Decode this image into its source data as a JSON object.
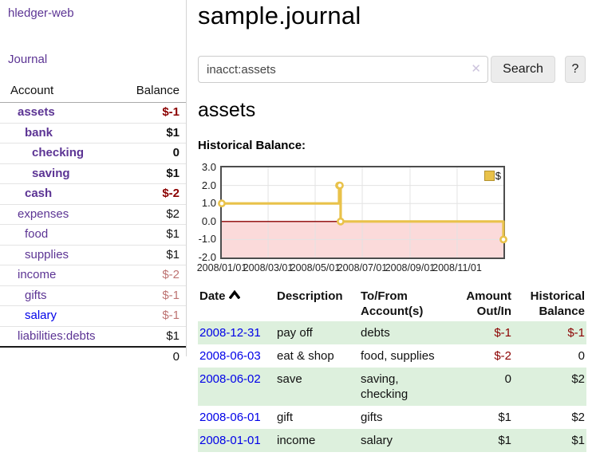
{
  "brand": "hledger-web",
  "nav": {
    "journal": "Journal"
  },
  "colors": {
    "accent_purple": "#5c3494",
    "link_blue": "#0000e8",
    "negative_strong": "#8b0000",
    "negative_muted": "#bd7372",
    "row_stripe_green": "#ddf0dd",
    "chart_line_gold": "#e9c24a",
    "chart_zero_line": "#8b0000",
    "chart_negative_region": "#fbdada"
  },
  "sidebar_table": {
    "headers": {
      "account": "Account",
      "balance": "Balance"
    },
    "rows": [
      {
        "name": "assets",
        "depth": 0,
        "bold": true,
        "balance": "$-1",
        "neg": "strong"
      },
      {
        "name": "bank",
        "depth": 1,
        "bold": true,
        "balance": "$1",
        "neg": "none"
      },
      {
        "name": "checking",
        "depth": 2,
        "bold": true,
        "balance": "0",
        "neg": "none"
      },
      {
        "name": "saving",
        "depth": 2,
        "bold": true,
        "balance": "$1",
        "neg": "none"
      },
      {
        "name": "cash",
        "depth": 1,
        "bold": true,
        "balance": "$-2",
        "neg": "strong"
      },
      {
        "name": "expenses",
        "depth": 0,
        "bold": false,
        "balance": "$2",
        "neg": "none"
      },
      {
        "name": "food",
        "depth": 1,
        "bold": false,
        "balance": "$1",
        "neg": "none"
      },
      {
        "name": "supplies",
        "depth": 1,
        "bold": false,
        "balance": "$1",
        "neg": "none"
      },
      {
        "name": "income",
        "depth": 0,
        "bold": false,
        "balance": "$-2",
        "neg": "muted"
      },
      {
        "name": "gifts",
        "depth": 1,
        "bold": false,
        "balance": "$-1",
        "neg": "muted"
      },
      {
        "name": "salary",
        "depth": 1,
        "bold": false,
        "balance": "$-1",
        "neg": "muted",
        "link": "blue"
      },
      {
        "name": "liabilities:debts",
        "depth": 0,
        "bold": false,
        "balance": "$1",
        "neg": "none"
      }
    ],
    "total": "0"
  },
  "header": {
    "title": "sample.journal"
  },
  "search": {
    "value": "inacct:assets",
    "clear_icon": "✕",
    "button": "Search",
    "help_button": "?"
  },
  "account_page": {
    "title": "assets"
  },
  "chart_data": {
    "type": "line",
    "step": true,
    "title": "Historical Balance:",
    "series": [
      {
        "name": "$",
        "color": "#e9c24a",
        "points": [
          [
            "2008-01-01",
            1
          ],
          [
            "2008-06-01",
            2
          ],
          [
            "2008-06-02",
            2
          ],
          [
            "2008-06-03",
            0
          ],
          [
            "2008-12-31",
            -1
          ]
        ]
      }
    ],
    "xlim": [
      "2008-01-01",
      "2008-12-31"
    ],
    "ylim": [
      -2,
      3
    ],
    "y_ticks": [
      "3.0",
      "2.0",
      "1.0",
      "0.0",
      "-1.0",
      "-2.0"
    ],
    "x_ticks": [
      "2008/01/01",
      "2008/03/01",
      "2008/05/01",
      "2008/07/01",
      "2008/09/01",
      "2008/11/01"
    ],
    "grid": true,
    "legend_position": "top-right",
    "negative_region_color": "#fbdada",
    "zero_line_color": "#8b0000"
  },
  "register": {
    "headers": {
      "date": "Date",
      "description": "Description",
      "accounts": "To/From\nAccount(s)",
      "amount": "Amount\nOut/In",
      "balance": "Historical\nBalance"
    },
    "sort_icon": "chevron-up",
    "rows": [
      {
        "date": "2008-12-31",
        "description": "pay off",
        "accounts": "debts",
        "amount": "$-1",
        "balance": "$-1",
        "amount_neg": true,
        "balance_neg": true,
        "stripe": true
      },
      {
        "date": "2008-06-03",
        "description": "eat & shop",
        "accounts": "food, supplies",
        "amount": "$-2",
        "balance": "0",
        "amount_neg": true,
        "balance_neg": false,
        "stripe": false
      },
      {
        "date": "2008-06-02",
        "description": "save",
        "accounts": "saving,\nchecking",
        "amount": "0",
        "balance": "$2",
        "amount_neg": false,
        "balance_neg": false,
        "stripe": true
      },
      {
        "date": "2008-06-01",
        "description": "gift",
        "accounts": "gifts",
        "amount": "$1",
        "balance": "$2",
        "amount_neg": false,
        "balance_neg": false,
        "stripe": false
      },
      {
        "date": "2008-01-01",
        "description": "income",
        "accounts": "salary",
        "amount": "$1",
        "balance": "$1",
        "amount_neg": false,
        "balance_neg": false,
        "stripe": true
      }
    ]
  }
}
